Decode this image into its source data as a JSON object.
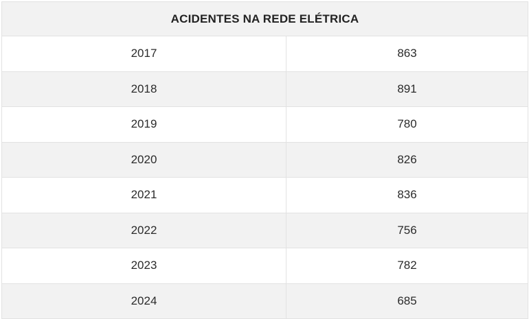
{
  "chart_data": {
    "type": "table",
    "title": "ACIDENTES NA REDE ELÉTRICA",
    "columns": [
      "",
      ""
    ],
    "rows": [
      {
        "year": "2017",
        "value": "863"
      },
      {
        "year": "2018",
        "value": "891"
      },
      {
        "year": "2019",
        "value": "780"
      },
      {
        "year": "2020",
        "value": "826"
      },
      {
        "year": "2021",
        "value": "836"
      },
      {
        "year": "2022",
        "value": "756"
      },
      {
        "year": "2023",
        "value": "782"
      },
      {
        "year": "2024",
        "value": "685"
      }
    ]
  },
  "colors": {
    "header_bg": "#f2f2f2",
    "alt_row_bg": "#f2f2f2",
    "row_bg": "#ffffff",
    "border": "#e2e2e2",
    "text": "#2b2b2b"
  }
}
